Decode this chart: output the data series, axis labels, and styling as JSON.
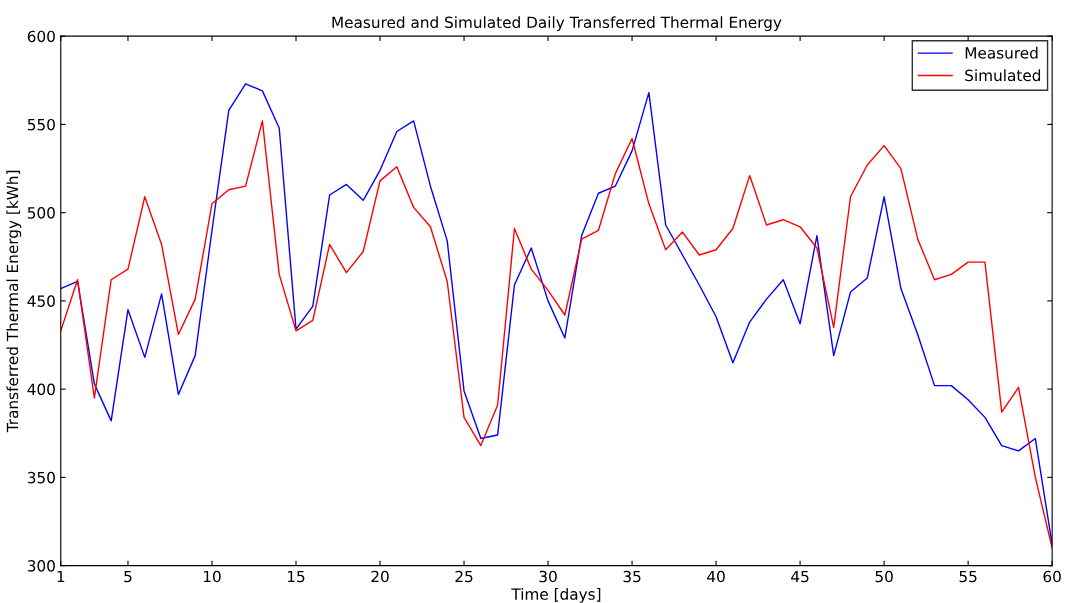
{
  "chart_data": {
    "type": "line",
    "title": "Measured and Simulated Daily Transferred Thermal Energy",
    "xlabel": "Time [days]",
    "ylabel": "Transferred Thermal Energy [kWh]",
    "x": [
      1,
      2,
      3,
      4,
      5,
      6,
      7,
      8,
      9,
      10,
      11,
      12,
      13,
      14,
      15,
      16,
      17,
      18,
      19,
      20,
      21,
      22,
      23,
      24,
      25,
      26,
      27,
      28,
      29,
      30,
      31,
      32,
      33,
      34,
      35,
      36,
      37,
      38,
      39,
      40,
      41,
      42,
      43,
      44,
      45,
      46,
      47,
      48,
      49,
      50,
      51,
      52,
      53,
      54,
      55,
      56,
      57,
      58,
      59,
      60
    ],
    "series": [
      {
        "name": "Measured",
        "color": "#0000ff",
        "values": [
          457,
          461,
          403,
          382,
          445,
          418,
          454,
          397,
          419,
          490,
          558,
          573,
          569,
          548,
          434,
          447,
          510,
          516,
          507,
          524,
          546,
          552,
          515,
          484,
          399,
          372,
          374,
          459,
          480,
          450,
          429,
          487,
          511,
          515,
          535,
          568,
          493,
          476,
          459,
          441,
          415,
          438,
          451,
          462,
          437,
          487,
          419,
          455,
          463,
          509,
          457,
          431,
          402,
          402,
          394,
          384,
          368,
          365,
          372,
          312
        ]
      },
      {
        "name": "Simulated",
        "color": "#ff0000",
        "values": [
          433,
          462,
          395,
          462,
          468,
          509,
          482,
          431,
          451,
          505,
          513,
          515,
          552,
          465,
          433,
          439,
          482,
          466,
          478,
          518,
          526,
          503,
          492,
          461,
          384,
          368,
          391,
          491,
          468,
          456,
          442,
          485,
          490,
          522,
          542,
          505,
          479,
          489,
          476,
          479,
          491,
          521,
          493,
          496,
          492,
          480,
          435,
          509,
          527,
          538,
          525,
          485,
          462,
          465,
          472,
          472,
          387,
          401,
          350,
          310
        ]
      }
    ],
    "xlim": [
      1,
      60
    ],
    "xticks": [
      1,
      5,
      10,
      15,
      20,
      25,
      30,
      35,
      40,
      45,
      50,
      55,
      60
    ],
    "ylim": [
      300,
      600
    ],
    "yticks": [
      300,
      350,
      400,
      450,
      500,
      550,
      600
    ],
    "grid": false,
    "legend": "top right",
    "line_style": "solid",
    "marker": "none"
  }
}
